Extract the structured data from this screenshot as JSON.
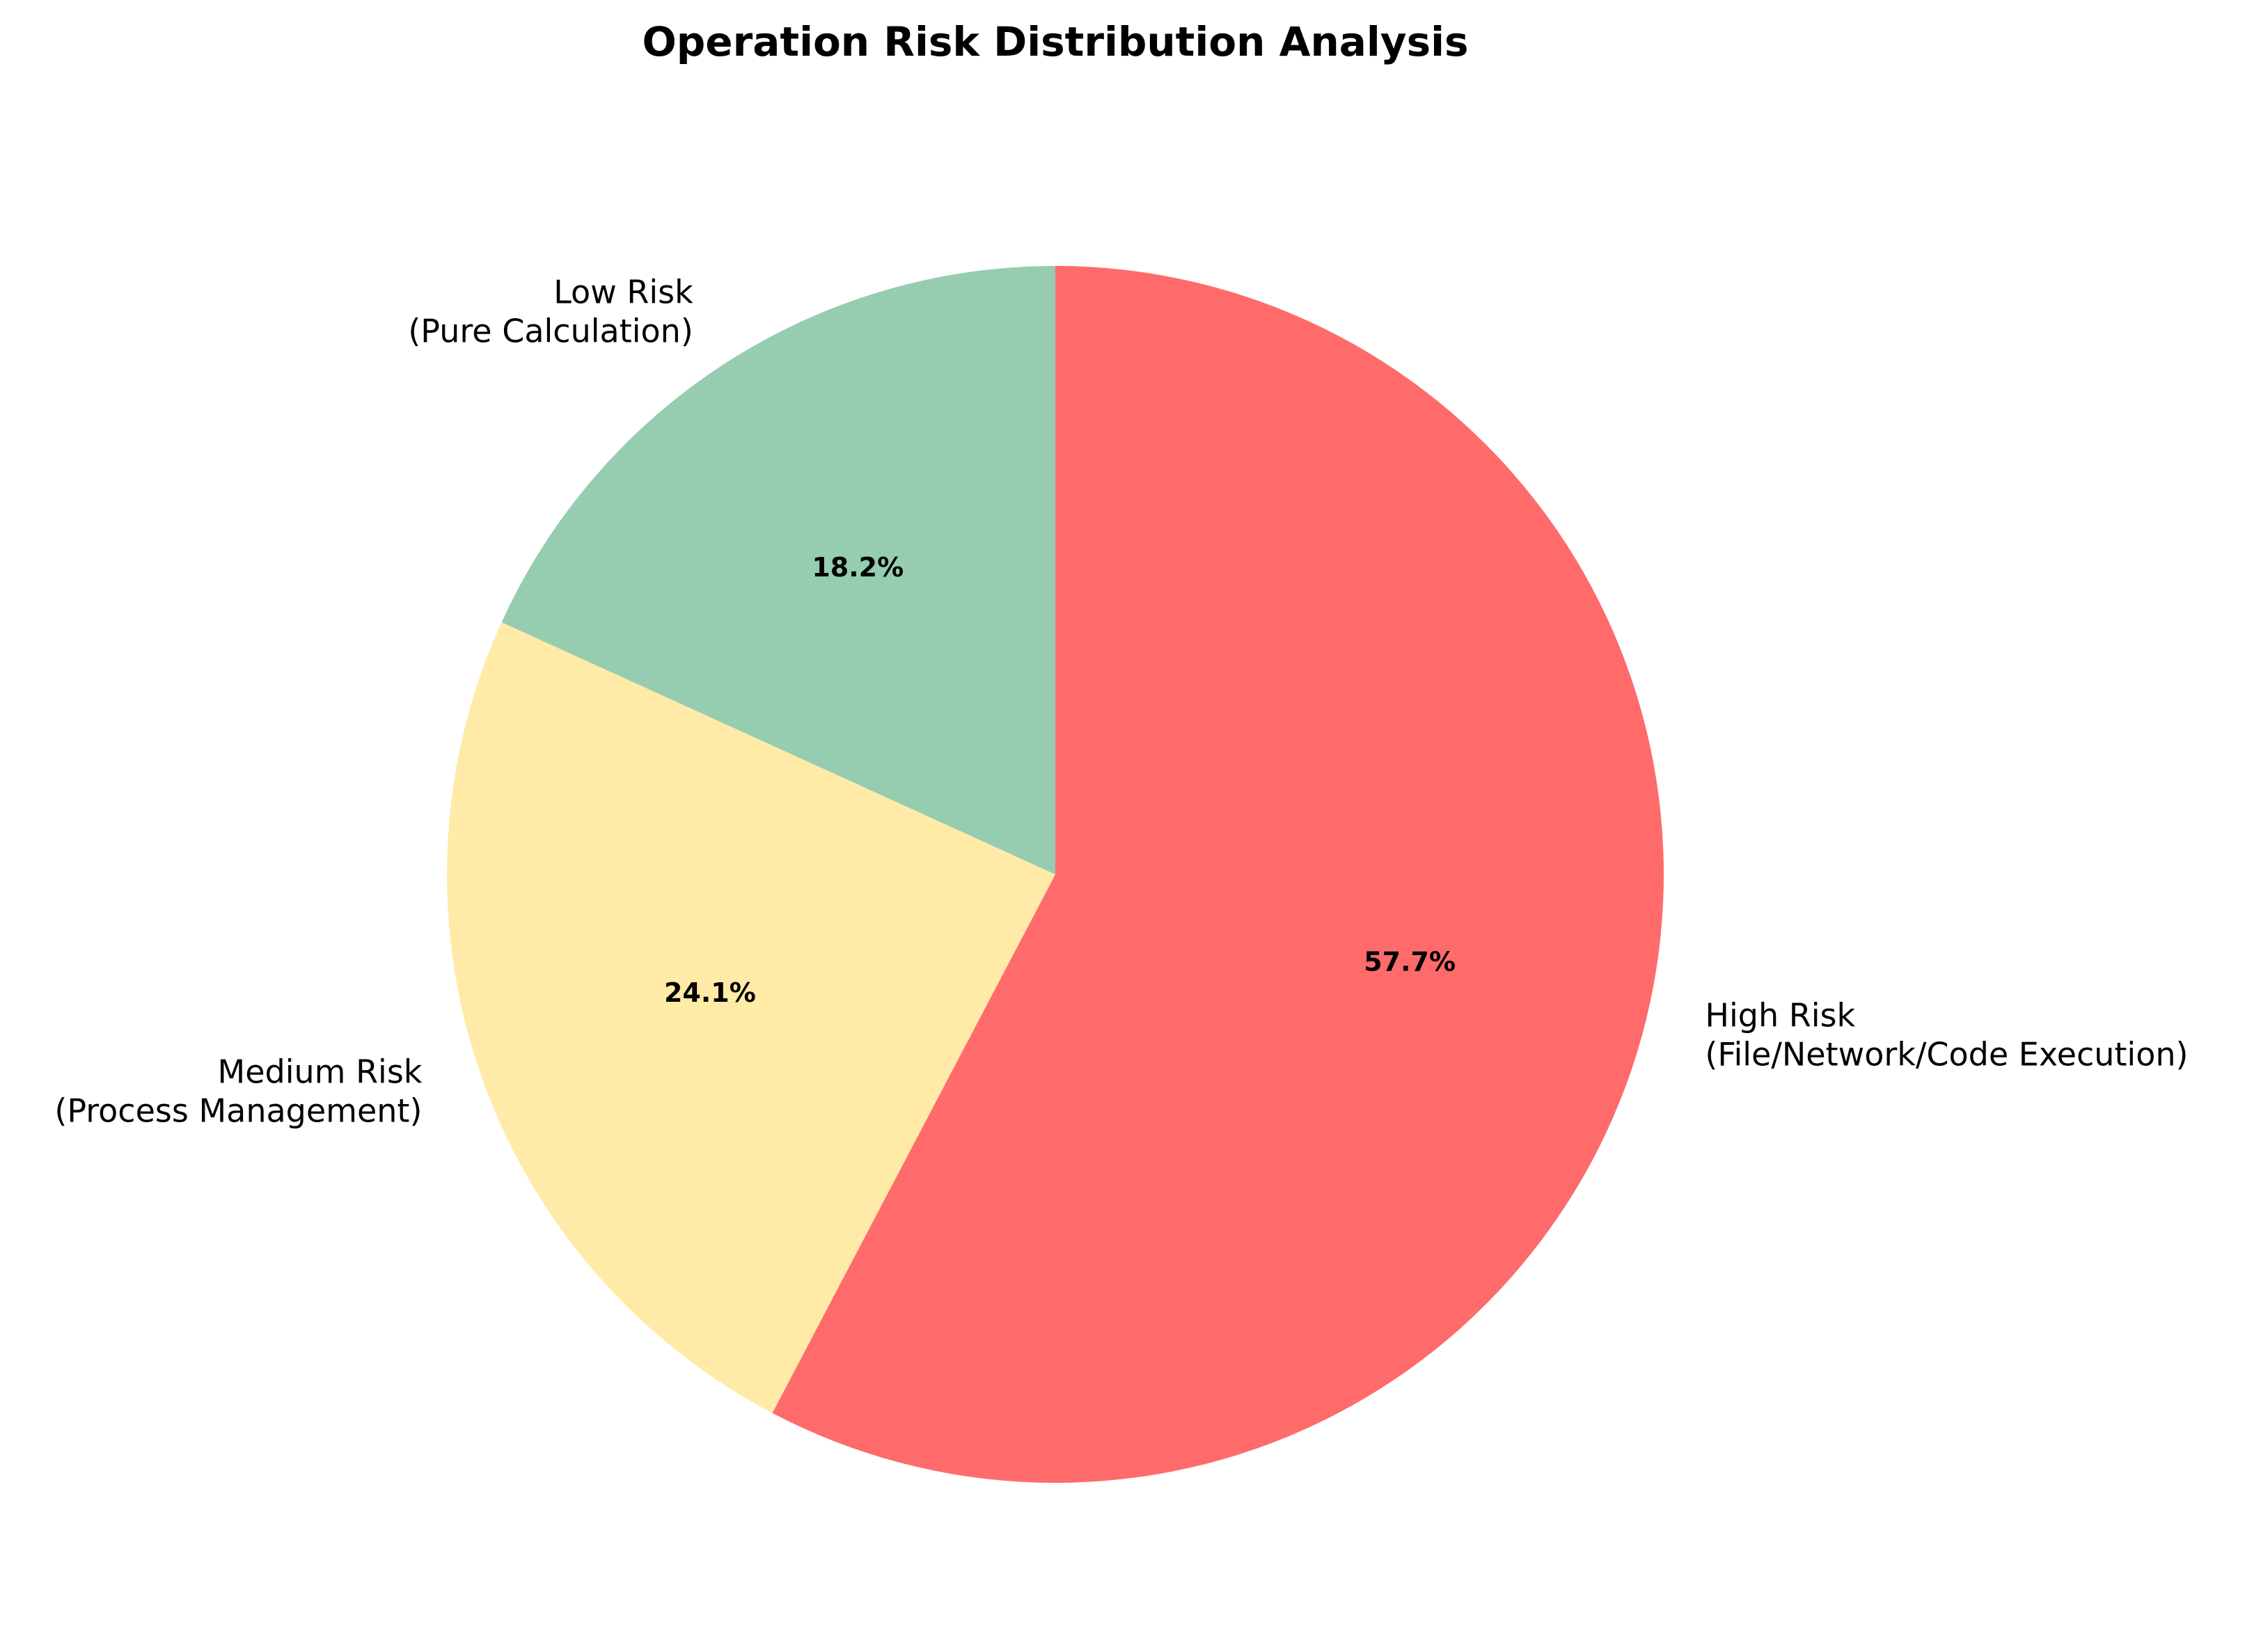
{
  "chart_data": {
    "type": "pie",
    "title": "Operation Risk Distribution Analysis",
    "start_angle_deg": 90,
    "direction": "clockwise",
    "slices": [
      {
        "label_lines": [
          "High Risk",
          "(File/Network/Code Execution)"
        ],
        "value": 57.7,
        "pct_text": "57.7%",
        "color": "#ff6b6b"
      },
      {
        "label_lines": [
          "Medium Risk",
          "(Process Management)"
        ],
        "value": 24.1,
        "pct_text": "24.1%",
        "color": "#ffeaa7"
      },
      {
        "label_lines": [
          "Low Risk",
          "(Pure Calculation)"
        ],
        "value": 18.2,
        "pct_text": "18.2%",
        "color": "#96cdb1"
      }
    ]
  }
}
